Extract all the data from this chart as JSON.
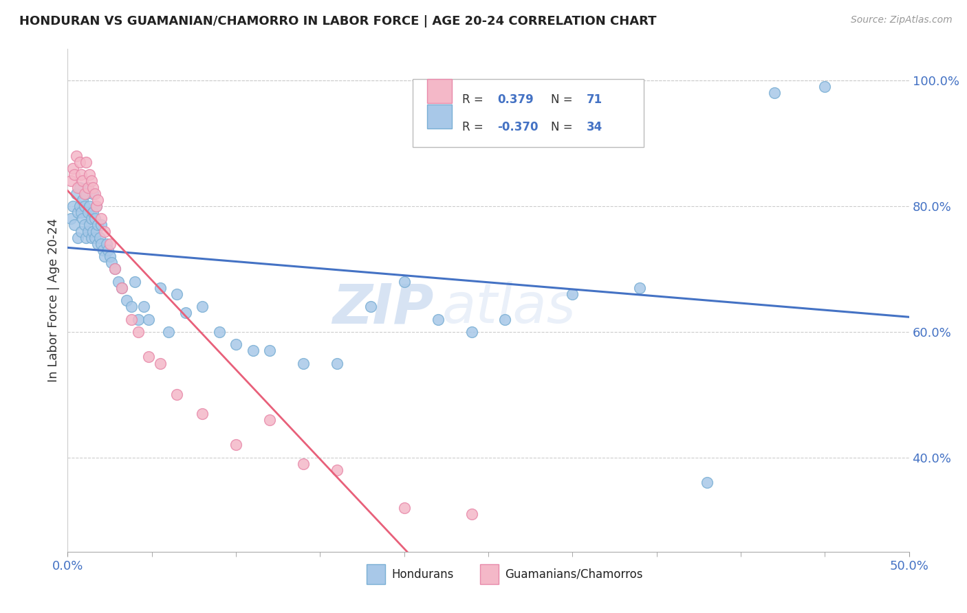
{
  "title": "HONDURAN VS GUAMANIAN/CHAMORRO IN LABOR FORCE | AGE 20-24 CORRELATION CHART",
  "source": "Source: ZipAtlas.com",
  "ylabel": "In Labor Force | Age 20-24",
  "xlim": [
    0.0,
    0.5
  ],
  "ylim": [
    0.25,
    1.05
  ],
  "yticks_right": [
    0.4,
    0.6,
    0.8,
    1.0
  ],
  "ytick_right_labels": [
    "40.0%",
    "60.0%",
    "80.0%",
    "100.0%"
  ],
  "blue_color": "#a8c8e8",
  "blue_edge": "#7aafd4",
  "pink_color": "#f4b8c8",
  "pink_edge": "#e88aaa",
  "trend_blue_color": "#4472c4",
  "trend_pink_color": "#e8607a",
  "R_blue": 0.379,
  "N_blue": 71,
  "R_pink": -0.37,
  "N_pink": 34,
  "legend_label_blue": "Hondurans",
  "legend_label_pink": "Guamanians/Chamorros",
  "watermark_zip": "ZIP",
  "watermark_atlas": "atlas",
  "background_color": "#ffffff",
  "blue_scatter_x": [
    0.002,
    0.003,
    0.004,
    0.005,
    0.006,
    0.006,
    0.007,
    0.007,
    0.008,
    0.008,
    0.009,
    0.009,
    0.01,
    0.01,
    0.011,
    0.011,
    0.012,
    0.012,
    0.012,
    0.013,
    0.013,
    0.014,
    0.014,
    0.015,
    0.015,
    0.015,
    0.016,
    0.016,
    0.017,
    0.017,
    0.018,
    0.018,
    0.019,
    0.02,
    0.02,
    0.021,
    0.022,
    0.023,
    0.024,
    0.025,
    0.026,
    0.028,
    0.03,
    0.032,
    0.035,
    0.038,
    0.04,
    0.042,
    0.045,
    0.048,
    0.055,
    0.06,
    0.065,
    0.07,
    0.08,
    0.09,
    0.1,
    0.11,
    0.12,
    0.14,
    0.16,
    0.18,
    0.2,
    0.22,
    0.24,
    0.26,
    0.3,
    0.34,
    0.38,
    0.42,
    0.45
  ],
  "blue_scatter_y": [
    0.78,
    0.8,
    0.77,
    0.82,
    0.75,
    0.79,
    0.8,
    0.83,
    0.76,
    0.79,
    0.78,
    0.81,
    0.77,
    0.8,
    0.75,
    0.82,
    0.76,
    0.79,
    0.83,
    0.77,
    0.8,
    0.75,
    0.78,
    0.76,
    0.79,
    0.82,
    0.75,
    0.78,
    0.76,
    0.8,
    0.74,
    0.77,
    0.75,
    0.74,
    0.77,
    0.73,
    0.72,
    0.74,
    0.73,
    0.72,
    0.71,
    0.7,
    0.68,
    0.67,
    0.65,
    0.64,
    0.68,
    0.62,
    0.64,
    0.62,
    0.67,
    0.6,
    0.66,
    0.63,
    0.64,
    0.6,
    0.58,
    0.57,
    0.57,
    0.55,
    0.55,
    0.64,
    0.68,
    0.62,
    0.6,
    0.62,
    0.66,
    0.67,
    0.36,
    0.98,
    0.99
  ],
  "pink_scatter_x": [
    0.002,
    0.003,
    0.004,
    0.005,
    0.006,
    0.007,
    0.008,
    0.009,
    0.01,
    0.011,
    0.012,
    0.013,
    0.014,
    0.015,
    0.016,
    0.017,
    0.018,
    0.02,
    0.022,
    0.025,
    0.028,
    0.032,
    0.038,
    0.042,
    0.048,
    0.055,
    0.065,
    0.08,
    0.1,
    0.12,
    0.14,
    0.16,
    0.2,
    0.24
  ],
  "pink_scatter_y": [
    0.84,
    0.86,
    0.85,
    0.88,
    0.83,
    0.87,
    0.85,
    0.84,
    0.82,
    0.87,
    0.83,
    0.85,
    0.84,
    0.83,
    0.82,
    0.8,
    0.81,
    0.78,
    0.76,
    0.74,
    0.7,
    0.67,
    0.62,
    0.6,
    0.56,
    0.55,
    0.5,
    0.47,
    0.42,
    0.46,
    0.39,
    0.38,
    0.32,
    0.31
  ]
}
